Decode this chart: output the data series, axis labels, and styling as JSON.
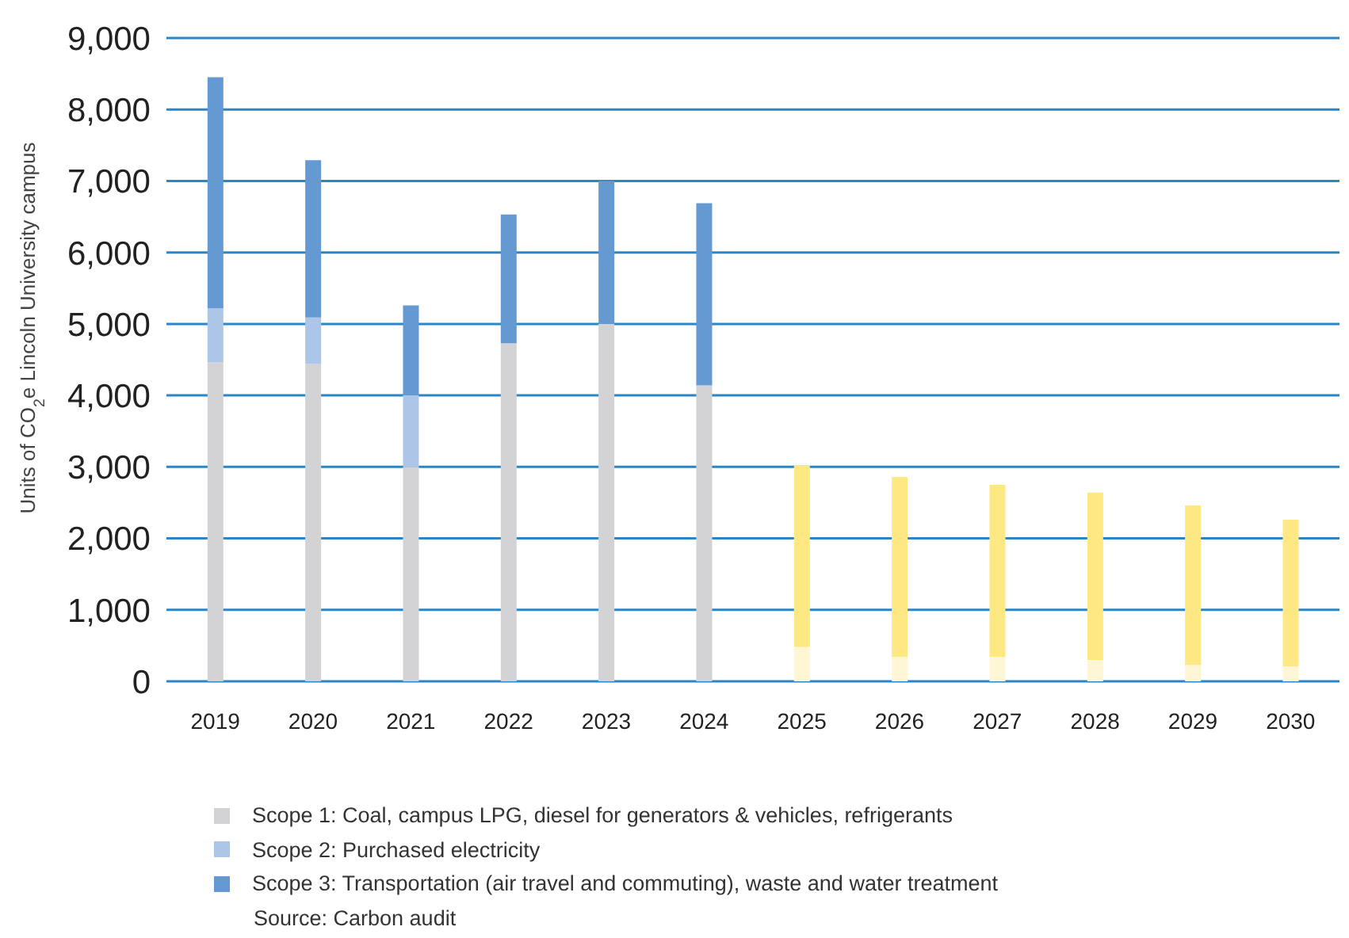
{
  "chart_data": {
    "type": "bar",
    "stacked": true,
    "categories": [
      "2019",
      "2020",
      "2021",
      "2022",
      "2023",
      "2024",
      "2025",
      "2026",
      "2027",
      "2028",
      "2029",
      "2030"
    ],
    "ylabel": "Units of CO$_{2}$e Lincoln University campus",
    "ylim": [
      0,
      9000
    ],
    "yticks": [
      {
        "value": 0,
        "label": "0"
      },
      {
        "value": 1000,
        "label": "1,000"
      },
      {
        "value": 2000,
        "label": "2,000"
      },
      {
        "value": 3000,
        "label": "3,000"
      },
      {
        "value": 4000,
        "label": "4,000"
      },
      {
        "value": 5000,
        "label": "5,000"
      },
      {
        "value": 6000,
        "label": "6,000"
      },
      {
        "value": 7000,
        "label": "7,000"
      },
      {
        "value": 8000,
        "label": "8,000"
      },
      {
        "value": 9000,
        "label": "9,000"
      }
    ],
    "grid": "y",
    "legend": "bottom",
    "series": [
      {
        "name": "Scope 1: Coal, campus LPG, diesel for generators & vehicles, refrigerants",
        "color": "#d3d3d5",
        "values": [
          4460,
          4440,
          3000,
          4730,
          5000,
          4140,
          null,
          null,
          null,
          null,
          null,
          null
        ]
      },
      {
        "name": "Scope 2: Purchased electricity",
        "color": "#adc5e7",
        "values": [
          760,
          650,
          1000,
          null,
          null,
          null,
          null,
          null,
          null,
          null,
          null,
          null
        ]
      },
      {
        "name": "Scope 3: Transportation (air travel and commuting), waste and water treatment",
        "color": "#6599d2",
        "values": [
          3230,
          2200,
          1260,
          1800,
          2000,
          2550,
          null,
          null,
          null,
          null,
          null,
          null
        ]
      },
      {
        "color": "#fff6d6",
        "values": [
          null,
          null,
          null,
          null,
          null,
          null,
          480,
          340,
          340,
          300,
          230,
          210
        ]
      },
      {
        "color": "#fee884",
        "values": [
          null,
          null,
          null,
          null,
          null,
          null,
          2540,
          2520,
          2410,
          2340,
          2230,
          2050
        ]
      }
    ],
    "annotations": [
      "Source: Carbon audit"
    ]
  }
}
